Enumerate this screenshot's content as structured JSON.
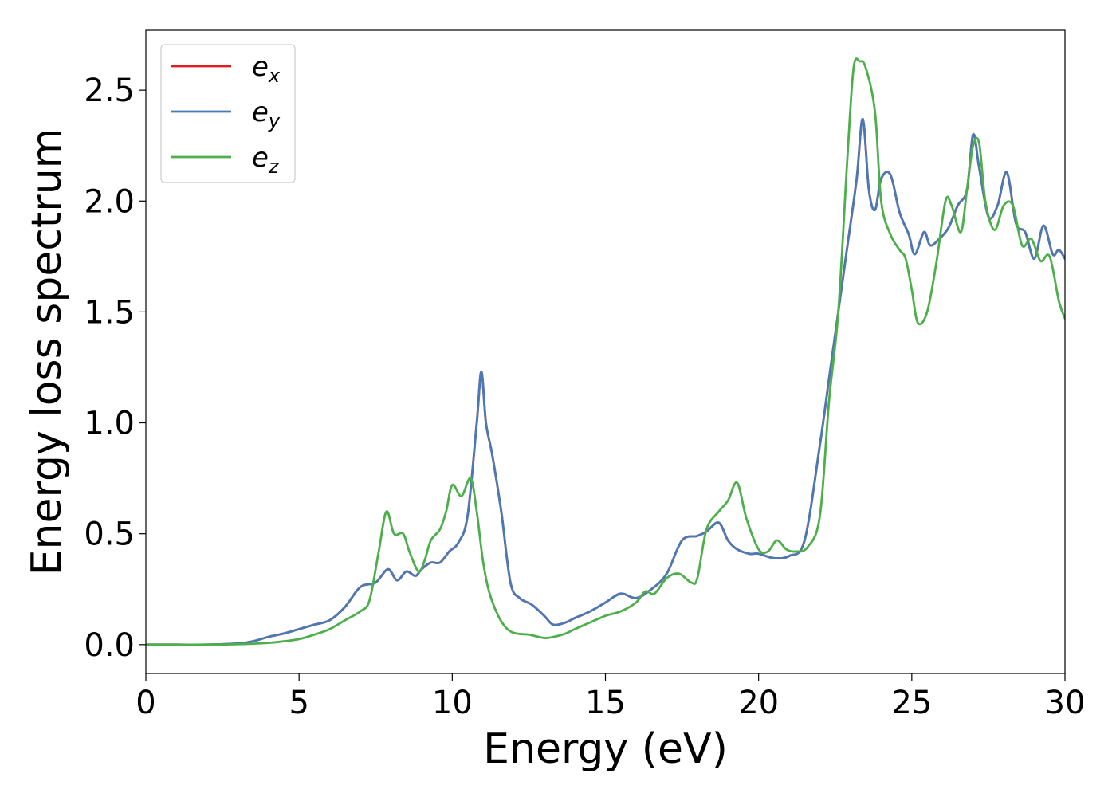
{
  "chart_data": {
    "type": "line",
    "xlabel": "Energy (eV)",
    "ylabel": "Energy loss spectrum",
    "xlim": [
      0,
      30
    ],
    "ylim": [
      -0.13,
      2.77
    ],
    "x_ticks": [
      0,
      5,
      10,
      15,
      20,
      25,
      30
    ],
    "x_tick_labels": [
      "0",
      "5",
      "10",
      "15",
      "20",
      "25",
      "30"
    ],
    "y_ticks": [
      0.0,
      0.5,
      1.0,
      1.5,
      2.0,
      2.5
    ],
    "y_tick_labels": [
      "0.0",
      "0.5",
      "1.0",
      "1.5",
      "2.0",
      "2.5"
    ],
    "grid": false,
    "legend_position": "top-left",
    "series": [
      {
        "name": "e_x",
        "label_main": "e",
        "label_sub": "x",
        "color": "#e41a1c",
        "x": [
          0,
          1,
          2,
          3,
          3.5,
          4,
          4.5,
          5,
          5.5,
          6,
          6.5,
          7,
          7.5,
          7.9,
          8.2,
          8.5,
          8.8,
          9,
          9.3,
          9.6,
          9.9,
          10.2,
          10.5,
          10.8,
          10.95,
          11.1,
          11.3,
          11.6,
          11.9,
          12.2,
          12.6,
          13,
          13.3,
          13.7,
          14,
          14.5,
          15,
          15.5,
          16,
          16.5,
          17,
          17.5,
          18,
          18.3,
          18.7,
          19,
          19.3,
          19.7,
          20,
          20.5,
          21,
          21.5,
          22,
          22.3,
          22.6,
          22.9,
          23.2,
          23.4,
          23.6,
          23.8,
          24,
          24.3,
          24.6,
          24.9,
          25.1,
          25.4,
          25.6,
          25.9,
          26.2,
          26.5,
          26.8,
          27,
          27.2,
          27.5,
          27.8,
          28.1,
          28.4,
          28.7,
          29,
          29.3,
          29.6,
          29.8,
          30
        ],
        "values": [
          0,
          0,
          0,
          0.005,
          0.015,
          0.035,
          0.05,
          0.07,
          0.09,
          0.11,
          0.17,
          0.26,
          0.28,
          0.34,
          0.29,
          0.33,
          0.31,
          0.34,
          0.37,
          0.37,
          0.42,
          0.46,
          0.58,
          1.0,
          1.23,
          1.0,
          0.86,
          0.6,
          0.28,
          0.21,
          0.18,
          0.13,
          0.09,
          0.1,
          0.12,
          0.15,
          0.19,
          0.23,
          0.21,
          0.25,
          0.32,
          0.47,
          0.49,
          0.51,
          0.55,
          0.47,
          0.43,
          0.41,
          0.41,
          0.39,
          0.4,
          0.47,
          0.9,
          1.2,
          1.5,
          1.8,
          2.1,
          2.37,
          2.05,
          1.96,
          2.1,
          2.12,
          1.95,
          1.85,
          1.76,
          1.86,
          1.8,
          1.83,
          1.88,
          1.98,
          2.05,
          2.3,
          2.15,
          1.93,
          1.98,
          2.13,
          1.9,
          1.86,
          1.74,
          1.89,
          1.76,
          1.78,
          1.74
        ]
      },
      {
        "name": "e_y",
        "label_main": "e",
        "label_sub": "y",
        "color": "#4a7ab5",
        "x": [
          0,
          1,
          2,
          3,
          3.5,
          4,
          4.5,
          5,
          5.5,
          6,
          6.5,
          7,
          7.5,
          7.9,
          8.2,
          8.5,
          8.8,
          9,
          9.3,
          9.6,
          9.9,
          10.2,
          10.5,
          10.8,
          10.95,
          11.1,
          11.3,
          11.6,
          11.9,
          12.2,
          12.6,
          13,
          13.3,
          13.7,
          14,
          14.5,
          15,
          15.5,
          16,
          16.5,
          17,
          17.5,
          18,
          18.3,
          18.7,
          19,
          19.3,
          19.7,
          20,
          20.5,
          21,
          21.5,
          22,
          22.3,
          22.6,
          22.9,
          23.2,
          23.4,
          23.6,
          23.8,
          24,
          24.3,
          24.6,
          24.9,
          25.1,
          25.4,
          25.6,
          25.9,
          26.2,
          26.5,
          26.8,
          27,
          27.2,
          27.5,
          27.8,
          28.1,
          28.4,
          28.7,
          29,
          29.3,
          29.6,
          29.8,
          30
        ],
        "values": [
          0,
          0,
          0,
          0.005,
          0.015,
          0.035,
          0.05,
          0.07,
          0.09,
          0.11,
          0.17,
          0.26,
          0.28,
          0.34,
          0.29,
          0.33,
          0.31,
          0.34,
          0.37,
          0.37,
          0.42,
          0.46,
          0.58,
          1.0,
          1.23,
          1.0,
          0.86,
          0.6,
          0.28,
          0.21,
          0.18,
          0.13,
          0.09,
          0.1,
          0.12,
          0.15,
          0.19,
          0.23,
          0.21,
          0.25,
          0.32,
          0.47,
          0.49,
          0.51,
          0.55,
          0.47,
          0.43,
          0.41,
          0.41,
          0.39,
          0.4,
          0.47,
          0.9,
          1.2,
          1.5,
          1.8,
          2.1,
          2.37,
          2.05,
          1.96,
          2.1,
          2.12,
          1.95,
          1.85,
          1.76,
          1.86,
          1.8,
          1.83,
          1.88,
          1.98,
          2.05,
          2.3,
          2.15,
          1.93,
          1.98,
          2.13,
          1.9,
          1.86,
          1.74,
          1.89,
          1.76,
          1.78,
          1.74
        ]
      },
      {
        "name": "e_z",
        "label_main": "e",
        "label_sub": "z",
        "color": "#4daf4a",
        "x": [
          0,
          1,
          2,
          3,
          4,
          4.5,
          5,
          5.5,
          6,
          6.5,
          7,
          7.3,
          7.6,
          7.85,
          8.1,
          8.4,
          8.6,
          8.9,
          9.1,
          9.3,
          9.6,
          9.8,
          10,
          10.3,
          10.6,
          10.8,
          11,
          11.2,
          11.5,
          11.8,
          12.1,
          12.5,
          13,
          13.3,
          13.7,
          14,
          14.5,
          15,
          15.5,
          16,
          16.3,
          16.6,
          17,
          17.4,
          17.8,
          18,
          18.3,
          18.7,
          19,
          19.3,
          19.6,
          20,
          20.3,
          20.6,
          20.9,
          21.2,
          21.6,
          22,
          22.3,
          22.6,
          22.9,
          23.1,
          23.3,
          23.5,
          23.8,
          24,
          24.3,
          24.6,
          24.8,
          25,
          25.2,
          25.5,
          25.8,
          26.1,
          26.3,
          26.6,
          26.8,
          27,
          27.2,
          27.4,
          27.7,
          28,
          28.3,
          28.6,
          28.9,
          29.2,
          29.5,
          29.8,
          30
        ],
        "values": [
          0,
          0,
          0,
          0.002,
          0.008,
          0.015,
          0.025,
          0.045,
          0.07,
          0.11,
          0.15,
          0.2,
          0.42,
          0.6,
          0.5,
          0.5,
          0.42,
          0.33,
          0.38,
          0.47,
          0.52,
          0.6,
          0.72,
          0.67,
          0.75,
          0.6,
          0.38,
          0.24,
          0.13,
          0.07,
          0.05,
          0.045,
          0.03,
          0.035,
          0.05,
          0.07,
          0.1,
          0.13,
          0.15,
          0.19,
          0.24,
          0.23,
          0.3,
          0.32,
          0.28,
          0.3,
          0.52,
          0.6,
          0.65,
          0.73,
          0.57,
          0.43,
          0.42,
          0.47,
          0.43,
          0.42,
          0.44,
          0.58,
          1.1,
          1.5,
          2.2,
          2.6,
          2.63,
          2.6,
          2.4,
          2.0,
          1.85,
          1.78,
          1.74,
          1.6,
          1.45,
          1.5,
          1.72,
          2.0,
          1.98,
          1.86,
          2.05,
          2.25,
          2.26,
          2.0,
          1.87,
          1.98,
          1.98,
          1.8,
          1.83,
          1.73,
          1.75,
          1.55,
          1.47
        ]
      }
    ]
  }
}
